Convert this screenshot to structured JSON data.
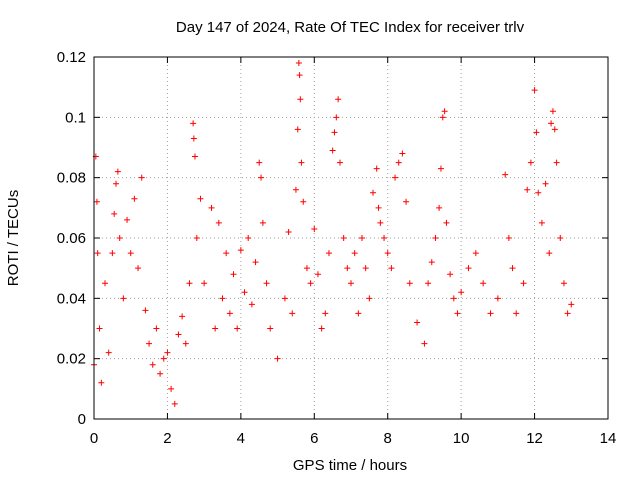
{
  "chart_data": {
    "type": "scatter",
    "title": "Day 147 of 2024, Rate Of TEC Index for receiver trlv",
    "xlabel": "GPS time / hours",
    "ylabel": "ROTI / TECUs",
    "xlim": [
      0,
      14
    ],
    "ylim": [
      0,
      0.12
    ],
    "x_ticks": [
      0,
      2,
      4,
      6,
      8,
      10,
      12,
      14
    ],
    "y_ticks": [
      0,
      0.02,
      0.04,
      0.06,
      0.08,
      0.1,
      0.12
    ],
    "x_tick_labels": [
      "0",
      "2",
      "4",
      "6",
      "8",
      "10",
      "12",
      "14"
    ],
    "y_tick_labels": [
      "0",
      "0.02",
      "0.04",
      "0.06",
      "0.08",
      "0.1",
      "0.12"
    ],
    "grid": true,
    "marker": "+",
    "marker_color": "#ff0000",
    "series": [
      {
        "name": "ROTI",
        "points": [
          [
            0.0,
            0.018
          ],
          [
            0.05,
            0.087
          ],
          [
            0.08,
            0.072
          ],
          [
            0.1,
            0.055
          ],
          [
            0.15,
            0.03
          ],
          [
            0.2,
            0.012
          ],
          [
            0.3,
            0.045
          ],
          [
            0.4,
            0.022
          ],
          [
            0.5,
            0.055
          ],
          [
            0.55,
            0.068
          ],
          [
            0.6,
            0.078
          ],
          [
            0.65,
            0.082
          ],
          [
            0.7,
            0.06
          ],
          [
            0.8,
            0.04
          ],
          [
            0.9,
            0.066
          ],
          [
            1.0,
            0.055
          ],
          [
            1.1,
            0.073
          ],
          [
            1.2,
            0.05
          ],
          [
            1.3,
            0.08
          ],
          [
            1.4,
            0.036
          ],
          [
            1.5,
            0.025
          ],
          [
            1.6,
            0.018
          ],
          [
            1.7,
            0.03
          ],
          [
            1.8,
            0.015
          ],
          [
            1.9,
            0.02
          ],
          [
            2.0,
            0.022
          ],
          [
            2.1,
            0.01
          ],
          [
            2.2,
            0.005
          ],
          [
            2.3,
            0.028
          ],
          [
            2.4,
            0.034
          ],
          [
            2.5,
            0.025
          ],
          [
            2.6,
            0.045
          ],
          [
            2.7,
            0.098
          ],
          [
            2.72,
            0.093
          ],
          [
            2.75,
            0.087
          ],
          [
            2.8,
            0.06
          ],
          [
            2.9,
            0.073
          ],
          [
            3.0,
            0.045
          ],
          [
            3.2,
            0.07
          ],
          [
            3.3,
            0.03
          ],
          [
            3.4,
            0.065
          ],
          [
            3.5,
            0.04
          ],
          [
            3.6,
            0.055
          ],
          [
            3.7,
            0.035
          ],
          [
            3.8,
            0.048
          ],
          [
            3.9,
            0.03
          ],
          [
            4.0,
            0.056
          ],
          [
            4.1,
            0.042
          ],
          [
            4.2,
            0.06
          ],
          [
            4.3,
            0.038
          ],
          [
            4.4,
            0.052
          ],
          [
            4.5,
            0.085
          ],
          [
            4.55,
            0.08
          ],
          [
            4.6,
            0.065
          ],
          [
            4.7,
            0.045
          ],
          [
            4.8,
            0.03
          ],
          [
            5.0,
            0.02
          ],
          [
            5.2,
            0.04
          ],
          [
            5.3,
            0.062
          ],
          [
            5.4,
            0.035
          ],
          [
            5.5,
            0.076
          ],
          [
            5.55,
            0.096
          ],
          [
            5.58,
            0.118
          ],
          [
            5.6,
            0.114
          ],
          [
            5.62,
            0.106
          ],
          [
            5.65,
            0.085
          ],
          [
            5.7,
            0.072
          ],
          [
            5.8,
            0.05
          ],
          [
            5.9,
            0.045
          ],
          [
            6.0,
            0.063
          ],
          [
            6.1,
            0.048
          ],
          [
            6.2,
            0.03
          ],
          [
            6.3,
            0.035
          ],
          [
            6.4,
            0.055
          ],
          [
            6.5,
            0.089
          ],
          [
            6.55,
            0.095
          ],
          [
            6.6,
            0.1
          ],
          [
            6.65,
            0.106
          ],
          [
            6.7,
            0.085
          ],
          [
            6.8,
            0.06
          ],
          [
            6.9,
            0.05
          ],
          [
            7.0,
            0.045
          ],
          [
            7.1,
            0.055
          ],
          [
            7.2,
            0.035
          ],
          [
            7.3,
            0.06
          ],
          [
            7.4,
            0.05
          ],
          [
            7.5,
            0.04
          ],
          [
            7.6,
            0.075
          ],
          [
            7.7,
            0.083
          ],
          [
            7.75,
            0.07
          ],
          [
            7.8,
            0.065
          ],
          [
            7.9,
            0.06
          ],
          [
            8.0,
            0.055
          ],
          [
            8.1,
            0.05
          ],
          [
            8.2,
            0.08
          ],
          [
            8.3,
            0.085
          ],
          [
            8.4,
            0.088
          ],
          [
            8.5,
            0.072
          ],
          [
            8.6,
            0.045
          ],
          [
            8.8,
            0.032
          ],
          [
            9.0,
            0.025
          ],
          [
            9.1,
            0.045
          ],
          [
            9.2,
            0.052
          ],
          [
            9.3,
            0.06
          ],
          [
            9.4,
            0.07
          ],
          [
            9.45,
            0.083
          ],
          [
            9.5,
            0.1
          ],
          [
            9.55,
            0.102
          ],
          [
            9.6,
            0.065
          ],
          [
            9.7,
            0.048
          ],
          [
            9.8,
            0.04
          ],
          [
            9.9,
            0.035
          ],
          [
            10.0,
            0.042
          ],
          [
            10.2,
            0.05
          ],
          [
            10.4,
            0.055
          ],
          [
            10.6,
            0.045
          ],
          [
            10.8,
            0.035
          ],
          [
            11.0,
            0.04
          ],
          [
            11.2,
            0.081
          ],
          [
            11.3,
            0.06
          ],
          [
            11.4,
            0.05
          ],
          [
            11.5,
            0.035
          ],
          [
            11.7,
            0.045
          ],
          [
            11.8,
            0.076
          ],
          [
            11.9,
            0.085
          ],
          [
            12.0,
            0.109
          ],
          [
            12.05,
            0.095
          ],
          [
            12.1,
            0.075
          ],
          [
            12.2,
            0.065
          ],
          [
            12.3,
            0.078
          ],
          [
            12.4,
            0.055
          ],
          [
            12.45,
            0.098
          ],
          [
            12.5,
            0.102
          ],
          [
            12.55,
            0.096
          ],
          [
            12.6,
            0.085
          ],
          [
            12.7,
            0.06
          ],
          [
            12.8,
            0.045
          ],
          [
            12.9,
            0.035
          ],
          [
            13.0,
            0.038
          ]
        ]
      }
    ]
  }
}
